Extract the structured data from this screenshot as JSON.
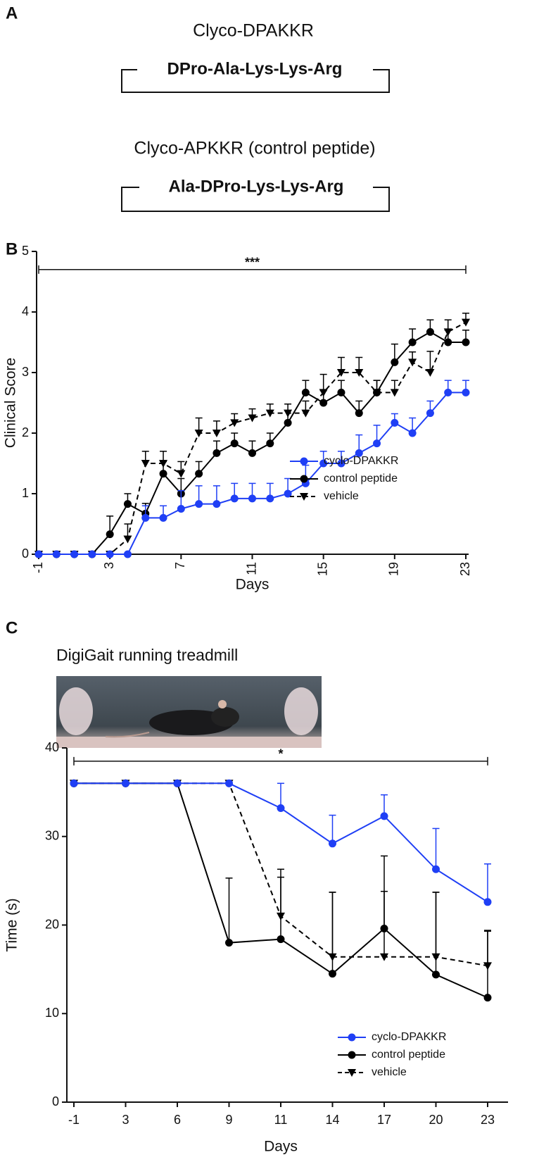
{
  "panel_labels": [
    "A",
    "B",
    "C"
  ],
  "panel_a": {
    "peptides": [
      {
        "name": "Clyco-DPAKKR",
        "sequence": "DPro-Ala-Lys-Lys-Arg"
      },
      {
        "name": "Clyco-APKKR (control peptide)",
        "sequence": "Ala-DPro-Lys-Lys-Arg"
      }
    ]
  },
  "chart_data": [
    {
      "type": "line",
      "xlabel": "Days",
      "ylabel": "Clinical Score",
      "x": [
        -1,
        0,
        1,
        2,
        3,
        4,
        5,
        6,
        7,
        8,
        9,
        10,
        11,
        12,
        13,
        14,
        15,
        16,
        17,
        18,
        19,
        20,
        21,
        22,
        23
      ],
      "xlim": [
        -1,
        23
      ],
      "xticks": [
        -1,
        3,
        7,
        11,
        15,
        19,
        23
      ],
      "ylim": [
        0,
        5
      ],
      "yticks": [
        0,
        1,
        2,
        3,
        4,
        5
      ],
      "annotation": {
        "text": "***",
        "from": -1,
        "to": 23,
        "y": 4.7
      },
      "series": [
        {
          "name": "vehicle",
          "color": "#000000",
          "marker": "triangle-down",
          "dash": true,
          "values": [
            0,
            0,
            0,
            0,
            0,
            0.25,
            1.5,
            1.5,
            1.33,
            2.0,
            2.0,
            2.17,
            2.25,
            2.33,
            2.33,
            2.33,
            2.67,
            3.0,
            3.0,
            2.67,
            2.67,
            3.17,
            3.0,
            3.67,
            3.83
          ],
          "errors": [
            0,
            0,
            0,
            0,
            0,
            0.25,
            0.2,
            0.2,
            0.2,
            0.25,
            0.2,
            0.15,
            0.15,
            0.15,
            0.15,
            0.2,
            0.3,
            0.25,
            0.25,
            0.2,
            0.2,
            0.17,
            0.35,
            0.2,
            0.15
          ]
        },
        {
          "name": "control peptide",
          "color": "#000000",
          "marker": "circle",
          "dash": false,
          "values": [
            0,
            0,
            0,
            0,
            0.33,
            0.83,
            0.67,
            1.33,
            1.0,
            1.33,
            1.67,
            1.83,
            1.67,
            1.83,
            2.17,
            2.67,
            2.5,
            2.67,
            2.33,
            2.67,
            3.17,
            3.5,
            3.67,
            3.5,
            3.5
          ],
          "errors": [
            0,
            0,
            0,
            0,
            0.3,
            0.17,
            0.17,
            0.2,
            0.25,
            0.2,
            0.2,
            0.17,
            0.2,
            0.17,
            0.2,
            0.2,
            0.2,
            0.2,
            0.2,
            0.2,
            0.3,
            0.22,
            0.2,
            0.2,
            0.2
          ]
        },
        {
          "name": "cyclo-DPAKKR",
          "color": "#1f3ff5",
          "marker": "circle",
          "dash": false,
          "values": [
            0,
            0,
            0,
            0,
            0,
            0,
            0.6,
            0.6,
            0.75,
            0.83,
            0.83,
            0.92,
            0.92,
            0.92,
            1.0,
            1.17,
            1.5,
            1.5,
            1.67,
            1.83,
            2.17,
            2.0,
            2.33,
            2.67,
            2.67
          ],
          "errors": [
            0,
            0,
            0,
            0,
            0,
            0,
            0.2,
            0.2,
            0.3,
            0.3,
            0.3,
            0.25,
            0.25,
            0.25,
            0.25,
            0.3,
            0.2,
            0.2,
            0.3,
            0.3,
            0.15,
            0.25,
            0.2,
            0.2,
            0.2
          ]
        }
      ]
    },
    {
      "type": "line",
      "title": "DigiGait running treadmill",
      "xlabel": "Days",
      "ylabel": "Time (s)",
      "categories": [
        "-1",
        "3",
        "6",
        "9",
        "11",
        "14",
        "17",
        "20",
        "23"
      ],
      "ylim": [
        0,
        40
      ],
      "yticks": [
        0,
        10,
        20,
        30,
        40
      ],
      "annotation": {
        "text": "*",
        "from": "-1",
        "to": "23",
        "y": 38.5
      },
      "series": [
        {
          "name": "vehicle",
          "color": "#000000",
          "marker": "triangle-down",
          "dash": true,
          "values": [
            36,
            36,
            36,
            36,
            21,
            16.4,
            16.4,
            16.4,
            15.4
          ],
          "errors": [
            0,
            0,
            0,
            0,
            4.4,
            7.3,
            7.4,
            7.3,
            4
          ]
        },
        {
          "name": "control peptide",
          "color": "#000000",
          "marker": "circle",
          "dash": false,
          "values": [
            36,
            36,
            36,
            18,
            18.4,
            14.5,
            19.6,
            14.4,
            11.8
          ],
          "errors": [
            0,
            0,
            0,
            7.3,
            7.9,
            9.2,
            8.2,
            9.3,
            7.5
          ]
        },
        {
          "name": "cyclo-DPAKKR",
          "color": "#1f3ff5",
          "marker": "circle",
          "dash": false,
          "values": [
            36,
            36,
            36,
            36,
            33.2,
            29.2,
            32.3,
            26.3,
            22.6
          ],
          "errors": [
            0,
            0,
            0,
            0,
            2.8,
            3.2,
            2.4,
            4.6,
            4.3
          ]
        }
      ]
    }
  ]
}
